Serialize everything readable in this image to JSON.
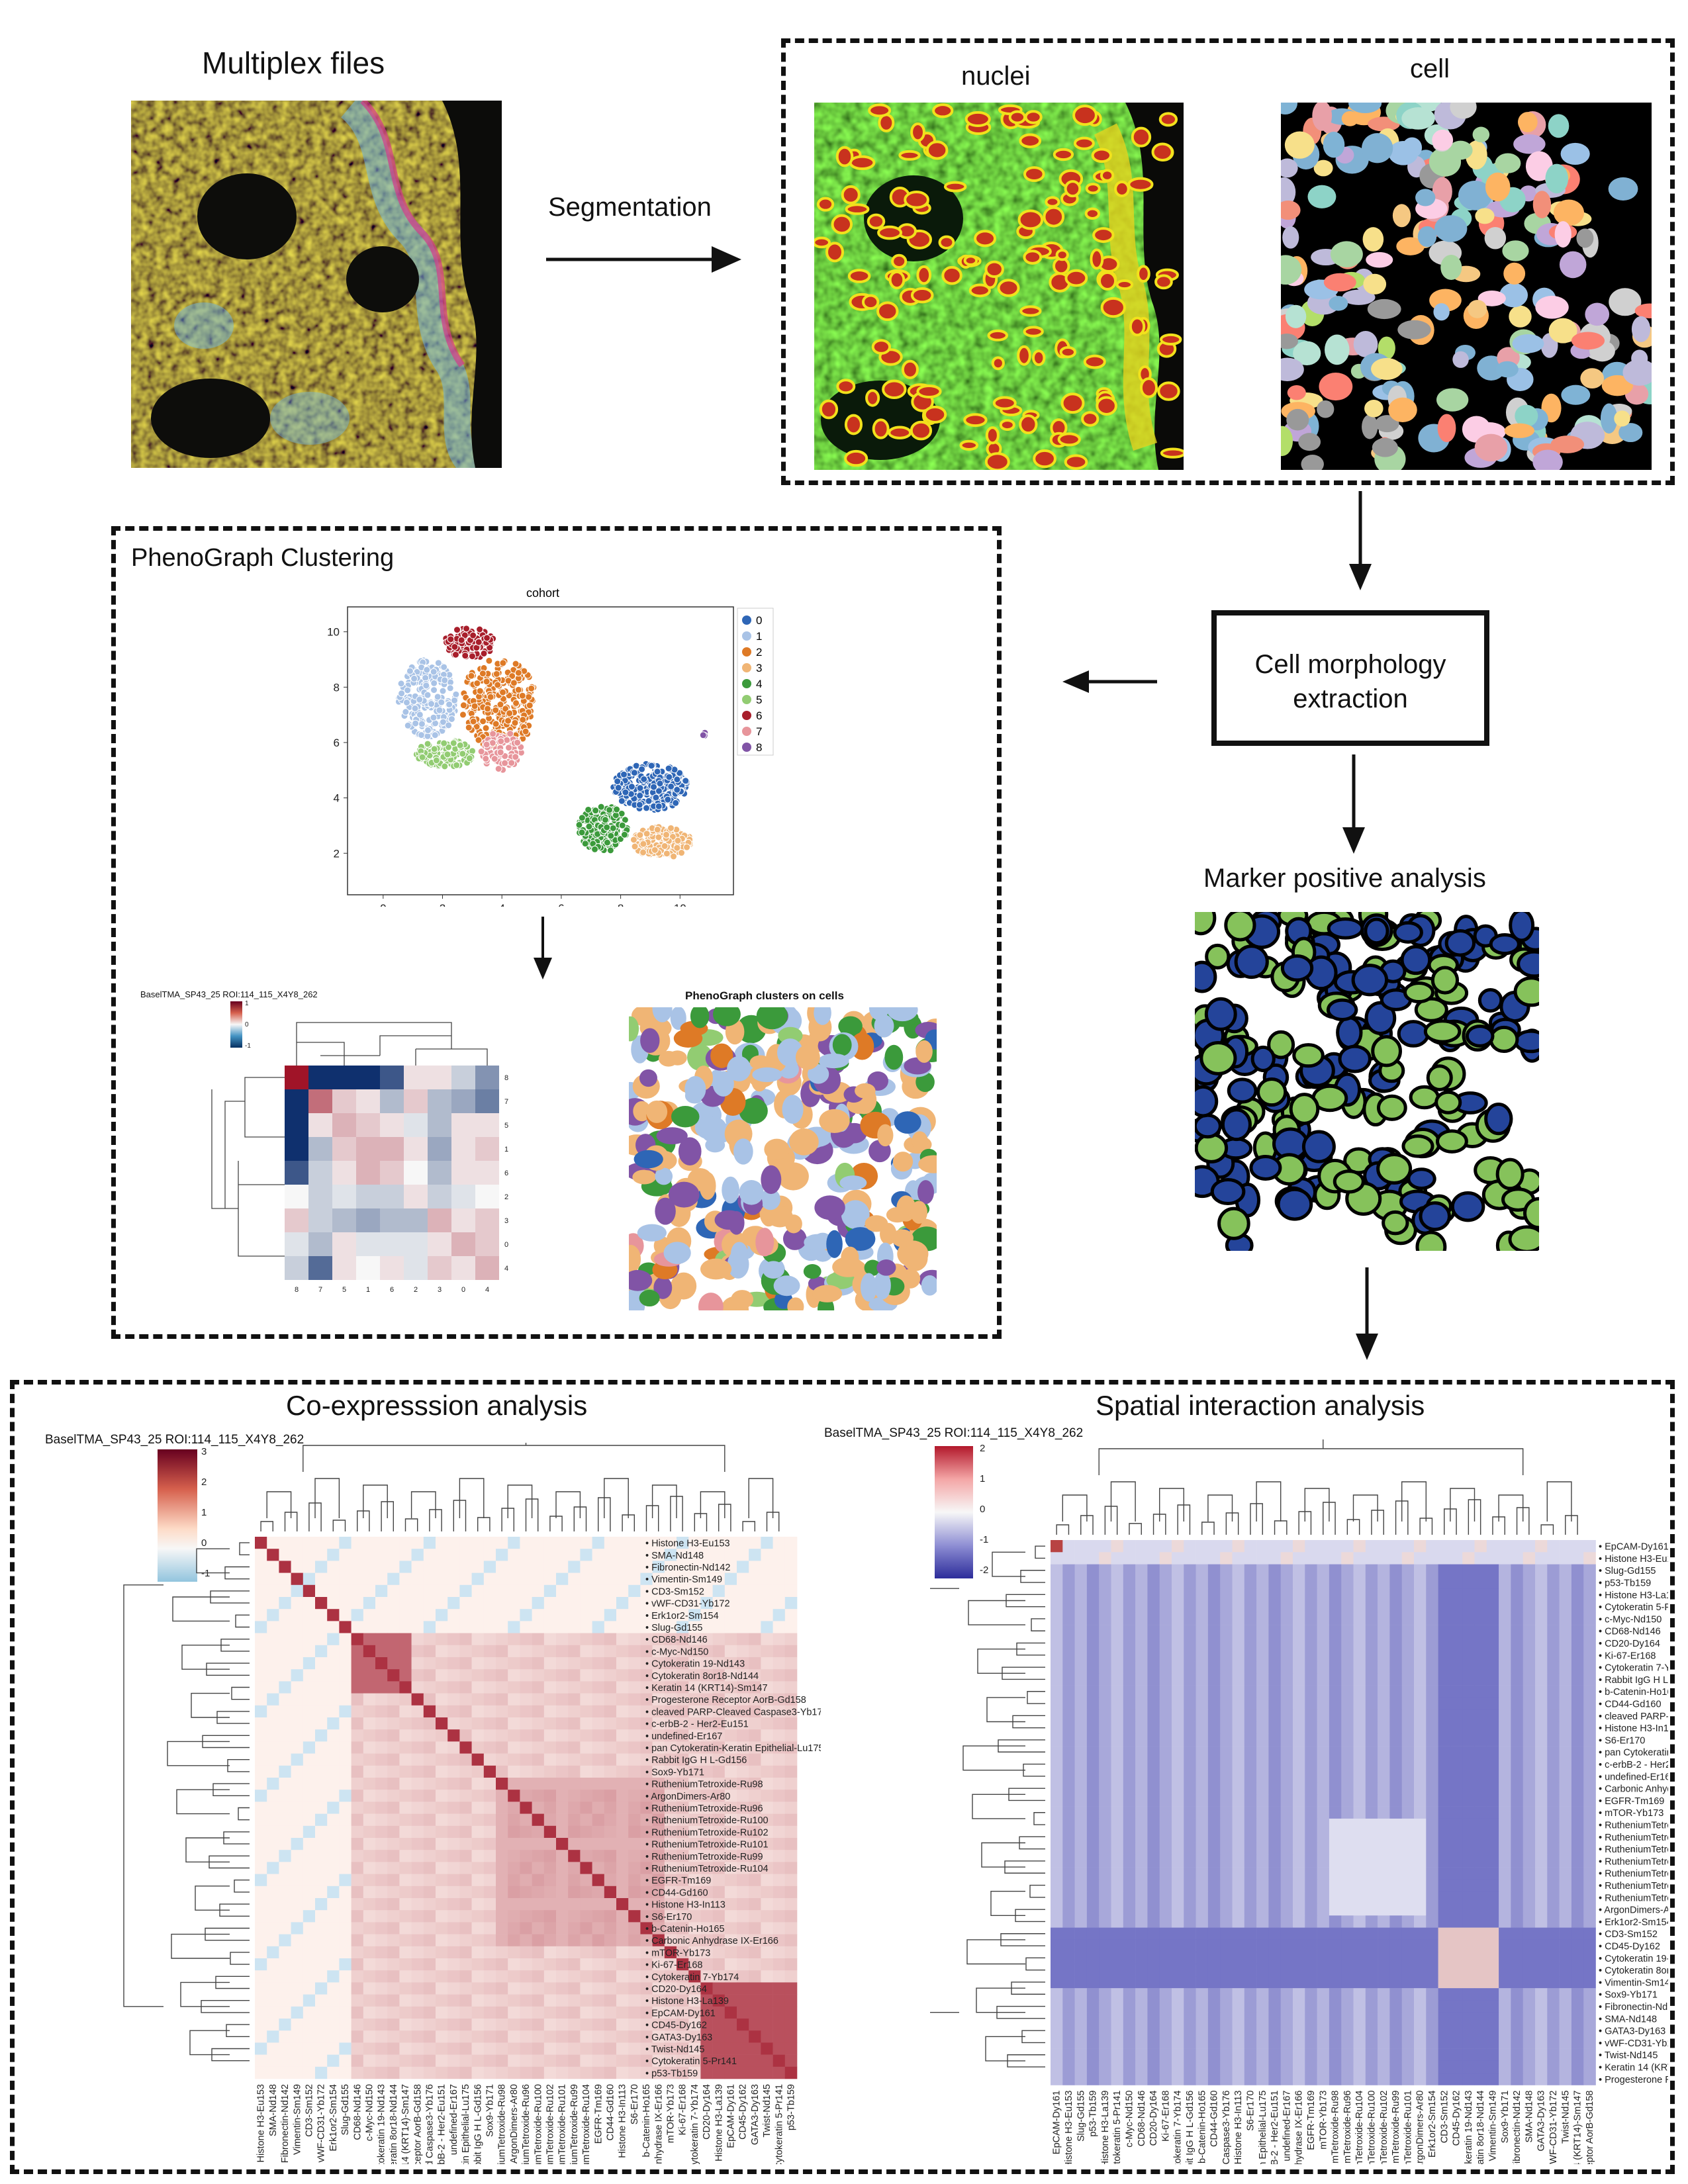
{
  "top": {
    "multiplex_title": "Multiplex files",
    "segmentation_label": "Segmentation",
    "nuclei_label": "nuclei",
    "cell_label": "cell"
  },
  "middle": {
    "phenograph_title": "PhenoGraph Clustering",
    "scatter_title": "cohort",
    "legend": [
      "0",
      "1",
      "2",
      "3",
      "4",
      "5",
      "6",
      "7",
      "8"
    ],
    "x_ticks": [
      "0",
      "2",
      "4",
      "6",
      "8",
      "10"
    ],
    "y_ticks": [
      "2",
      "4",
      "6",
      "8",
      "10"
    ],
    "cm_line1": "Cell morphology",
    "cm_line2": "extraction",
    "marker_title": "Marker positive analysis",
    "small_heatmap_title": "BaselTMA_SP43_25 ROI:114_115_X4Y8_262",
    "small_heatmap_row_labels": [
      "8",
      "7",
      "5",
      "1",
      "6",
      "2",
      "3",
      "0",
      "4"
    ],
    "small_heatmap_col_labels": [
      "8",
      "7",
      "5",
      "1",
      "6",
      "2",
      "3",
      "0",
      "4"
    ],
    "small_cbar_ticks": [
      "1",
      "0",
      "-1"
    ],
    "clusters_title": "PhenoGraph clusters on cells"
  },
  "bottom": {
    "coexp_title": "Co-expresssion analysis",
    "spatial_title": "Spatial interaction analysis",
    "coexp_heatmap_title": "BaselTMA_SP43_25 ROI:114_115_X4Y8_262",
    "spatial_heatmap_title": "BaselTMA_SP43_25 ROI:114_115_X4Y8_262",
    "coexp_cbar_ticks": [
      "3",
      "2",
      "1",
      "0",
      "-1"
    ],
    "spatial_cbar_ticks": [
      "2",
      "1",
      "0",
      "-1",
      "-2"
    ],
    "coexp_markers": [
      "Histone H3-Eu153",
      "SMA-Nd148",
      "Fibronectin-Nd142",
      "Vimentin-Sm149",
      "CD3-Sm152",
      "vWF-CD31-Yb172",
      "Erk1or2-Sm154",
      "Slug-Gd155",
      "CD68-Nd146",
      "c-Myc-Nd150",
      "Cytokeratin 19-Nd143",
      "Cytokeratin 8or18-Nd144",
      "Keratin 14 (KRT14)-Sm147",
      "Progesterone Receptor AorB-Gd158",
      "cleaved PARP-Cleaved Caspase3-Yb176",
      "c-erbB-2 - Her2-Eu151",
      "undefined-Er167",
      "pan Cytokeratin-Keratin Epithelial-Lu175",
      "Rabbit IgG H L-Gd156",
      "Sox9-Yb171",
      "RutheniumTetroxide-Ru98",
      "ArgonDimers-Ar80",
      "RutheniumTetroxide-Ru96",
      "RutheniumTetroxide-Ru100",
      "RutheniumTetroxide-Ru102",
      "RutheniumTetroxide-Ru101",
      "RutheniumTetroxide-Ru99",
      "RutheniumTetroxide-Ru104",
      "EGFR-Tm169",
      "CD44-Gd160",
      "Histone H3-In113",
      "S6-Er170",
      "b-Catenin-Ho165",
      "Carbonic Anhydrase IX-Er166",
      "mTOR-Yb173",
      "Ki-67-Er168",
      "Cytokeratin 7-Yb174",
      "CD20-Dy164",
      "Histone H3-La139",
      "EpCAM-Dy161",
      "CD45-Dy162",
      "GATA3-Dy163",
      "Twist-Nd145",
      "Cytokeratin 5-Pr141",
      "p53-Tb159"
    ],
    "spatial_markers": [
      "EpCAM-Dy161",
      "Histone H3-Eu153",
      "Slug-Gd155",
      "p53-Tb159",
      "Histone H3-La139",
      "Cytokeratin 5-Pr141",
      "c-Myc-Nd150",
      "CD68-Nd146",
      "CD20-Dy164",
      "Ki-67-Er168",
      "Cytokeratin 7-Yb174",
      "Rabbit IgG H L-Gd156",
      "b-Catenin-Ho165",
      "CD44-Gd160",
      "cleaved PARP-Cleaved Caspase3-Yb176",
      "Histone H3-In113",
      "S6-Er170",
      "pan Cytokeratin-Keratin Epithelial-Lu175",
      "c-erbB-2 - Her2-Eu151",
      "undefined-Er167",
      "Carbonic Anhydrase IX-Er166",
      "EGFR-Tm169",
      "mTOR-Yb173",
      "RutheniumTetroxide-Ru98",
      "RutheniumTetroxide-Ru96",
      "RutheniumTetroxide-Ru104",
      "RutheniumTetroxide-Ru100",
      "RutheniumTetroxide-Ru102",
      "RutheniumTetroxide-Ru99",
      "RutheniumTetroxide-Ru101",
      "ArgonDimers-Ar80",
      "Erk1or2-Sm154",
      "CD3-Sm152",
      "CD45-Dy162",
      "Cytokeratin 19-Nd143",
      "Cytokeratin 8or18-Nd144",
      "Vimentin-Sm149",
      "Sox9-Yb171",
      "Fibronectin-Nd142",
      "SMA-Nd148",
      "GATA3-Dy163",
      "vWF-CD31-Yb172",
      "Twist-Nd145",
      "Keratin 14 (KRT14)-Sm147",
      "Progesterone Receptor AorB-Gd158"
    ]
  },
  "colors": {
    "cluster": [
      "#2e66b6",
      "#a9c3e6",
      "#de7a26",
      "#f0b575",
      "#3b9a3b",
      "#92cc72",
      "#a81e2b",
      "#e7959b",
      "#8154a6"
    ],
    "marker_positive": "#86c25b",
    "marker_negative": "#24449a"
  }
}
